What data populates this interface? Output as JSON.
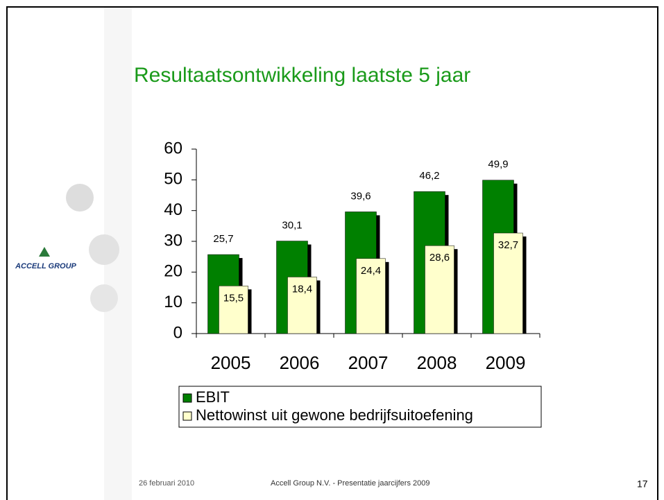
{
  "logo": {
    "text": "ACCELL GROUP"
  },
  "chart_data": {
    "type": "bar",
    "title": "Resultaatsontwikkeling laatste 5 jaar",
    "categories": [
      "2005",
      "2006",
      "2007",
      "2008",
      "2009"
    ],
    "series": [
      {
        "name": "EBIT",
        "color": "#008000",
        "values": [
          25.7,
          30.1,
          39.6,
          46.2,
          49.9
        ],
        "value_labels": [
          "25,7",
          "30,1",
          "39,6",
          "46,2",
          "49,9"
        ]
      },
      {
        "name": "Nettowinst uit gewone bedrijfsuitoefening",
        "color": "#ffffcc",
        "values": [
          15.5,
          18.4,
          24.4,
          28.6,
          32.7
        ],
        "value_labels": [
          "15,5",
          "18,4",
          "24,4",
          "28,6",
          "32,7"
        ]
      }
    ],
    "ylim": [
      0,
      60
    ],
    "yticks": [
      0,
      10,
      20,
      30,
      40,
      50,
      60
    ],
    "grid": false
  },
  "footer": {
    "date": "26 februari 2010",
    "text": "Accell Group N.V. - Presentatie jaarcijfers 2009",
    "page": "17"
  }
}
